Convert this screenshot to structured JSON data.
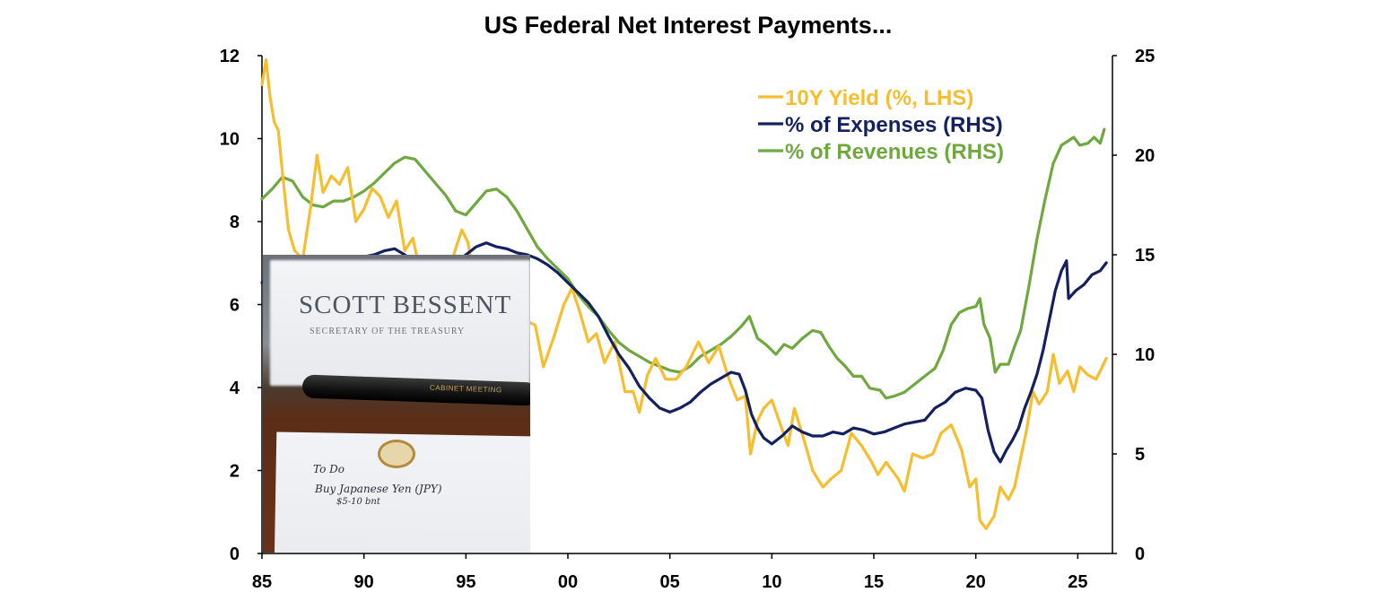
{
  "chart_data": {
    "type": "line",
    "title": "US Federal Net Interest Payments...",
    "x_tick_labels": [
      "85",
      "90",
      "95",
      "00",
      "05",
      "10",
      "15",
      "20",
      "25"
    ],
    "x_ticks": [
      1985,
      1990,
      1995,
      2000,
      2005,
      2010,
      2015,
      2020,
      2025
    ],
    "xlim": [
      1985,
      2026.7
    ],
    "y_left": {
      "ticks": [
        0,
        2,
        4,
        6,
        8,
        10,
        12
      ],
      "ylim": [
        0,
        12
      ]
    },
    "y_right": {
      "ticks": [
        0,
        5,
        10,
        15,
        20,
        25
      ],
      "ylim": [
        0,
        25
      ]
    },
    "legend_position": "top-right",
    "grid": false,
    "series": [
      {
        "name": "10Y Yield (%, LHS)",
        "axis": "left",
        "color": "#F6BE2E",
        "points": [
          [
            1985.0,
            11.3
          ],
          [
            1985.2,
            11.9
          ],
          [
            1985.4,
            11.0
          ],
          [
            1985.6,
            10.4
          ],
          [
            1985.8,
            10.2
          ],
          [
            1986.0,
            9.2
          ],
          [
            1986.3,
            7.8
          ],
          [
            1986.6,
            7.3
          ],
          [
            1987.0,
            7.1
          ],
          [
            1987.4,
            8.4
          ],
          [
            1987.7,
            9.6
          ],
          [
            1988.0,
            8.7
          ],
          [
            1988.4,
            9.1
          ],
          [
            1988.8,
            8.9
          ],
          [
            1989.2,
            9.3
          ],
          [
            1989.6,
            8.0
          ],
          [
            1990.0,
            8.3
          ],
          [
            1990.4,
            8.8
          ],
          [
            1990.8,
            8.6
          ],
          [
            1991.2,
            8.1
          ],
          [
            1991.6,
            8.5
          ],
          [
            1992.0,
            7.3
          ],
          [
            1992.4,
            7.6
          ],
          [
            1992.8,
            6.7
          ],
          [
            1993.2,
            6.0
          ],
          [
            1993.6,
            5.5
          ],
          [
            1994.0,
            5.9
          ],
          [
            1994.4,
            7.2
          ],
          [
            1994.8,
            7.8
          ],
          [
            1995.1,
            7.5
          ],
          [
            1995.5,
            6.3
          ],
          [
            1996.0,
            5.7
          ],
          [
            1996.5,
            6.7
          ],
          [
            1997.0,
            6.4
          ],
          [
            1997.5,
            6.1
          ],
          [
            1998.0,
            5.6
          ],
          [
            1998.4,
            5.5
          ],
          [
            1998.8,
            4.5
          ],
          [
            1999.3,
            5.2
          ],
          [
            1999.8,
            6.0
          ],
          [
            2000.2,
            6.4
          ],
          [
            2000.6,
            5.8
          ],
          [
            2001.0,
            5.1
          ],
          [
            2001.4,
            5.3
          ],
          [
            2001.8,
            4.6
          ],
          [
            2002.3,
            5.1
          ],
          [
            2002.8,
            3.9
          ],
          [
            2003.2,
            3.9
          ],
          [
            2003.5,
            3.4
          ],
          [
            2003.9,
            4.3
          ],
          [
            2004.3,
            4.7
          ],
          [
            2004.8,
            4.2
          ],
          [
            2005.3,
            4.2
          ],
          [
            2005.8,
            4.5
          ],
          [
            2006.4,
            5.1
          ],
          [
            2006.9,
            4.6
          ],
          [
            2007.4,
            5.0
          ],
          [
            2007.9,
            4.2
          ],
          [
            2008.3,
            3.7
          ],
          [
            2008.7,
            3.8
          ],
          [
            2008.95,
            2.4
          ],
          [
            2009.3,
            3.2
          ],
          [
            2009.6,
            3.5
          ],
          [
            2010.0,
            3.7
          ],
          [
            2010.5,
            3.0
          ],
          [
            2010.8,
            2.6
          ],
          [
            2011.1,
            3.5
          ],
          [
            2011.6,
            2.7
          ],
          [
            2012.0,
            2.0
          ],
          [
            2012.5,
            1.6
          ],
          [
            2012.9,
            1.8
          ],
          [
            2013.4,
            2.0
          ],
          [
            2013.9,
            2.9
          ],
          [
            2014.4,
            2.6
          ],
          [
            2014.9,
            2.2
          ],
          [
            2015.2,
            1.9
          ],
          [
            2015.6,
            2.2
          ],
          [
            2016.2,
            1.8
          ],
          [
            2016.5,
            1.5
          ],
          [
            2016.9,
            2.4
          ],
          [
            2017.4,
            2.3
          ],
          [
            2017.9,
            2.4
          ],
          [
            2018.3,
            2.9
          ],
          [
            2018.8,
            3.1
          ],
          [
            2019.3,
            2.5
          ],
          [
            2019.7,
            1.6
          ],
          [
            2020.0,
            1.8
          ],
          [
            2020.2,
            0.8
          ],
          [
            2020.5,
            0.6
          ],
          [
            2020.9,
            0.9
          ],
          [
            2021.2,
            1.6
          ],
          [
            2021.6,
            1.3
          ],
          [
            2021.9,
            1.6
          ],
          [
            2022.2,
            2.3
          ],
          [
            2022.5,
            3.0
          ],
          [
            2022.8,
            3.9
          ],
          [
            2023.1,
            3.6
          ],
          [
            2023.5,
            3.9
          ],
          [
            2023.8,
            4.8
          ],
          [
            2024.1,
            4.1
          ],
          [
            2024.5,
            4.4
          ],
          [
            2024.8,
            3.9
          ],
          [
            2025.1,
            4.5
          ],
          [
            2025.5,
            4.3
          ],
          [
            2025.9,
            4.2
          ],
          [
            2026.2,
            4.5
          ],
          [
            2026.4,
            4.7
          ]
        ]
      },
      {
        "name": "% of Expenses (RHS)",
        "axis": "right",
        "color": "#14215E",
        "points": [
          [
            1985.0,
            13.6
          ],
          [
            1985.5,
            13.9
          ],
          [
            1986.0,
            14.0
          ],
          [
            1986.5,
            13.8
          ],
          [
            1987.0,
            14.1
          ],
          [
            1987.5,
            14.0
          ],
          [
            1988.0,
            14.3
          ],
          [
            1988.5,
            14.5
          ],
          [
            1989.0,
            14.8
          ],
          [
            1989.5,
            14.7
          ],
          [
            1990.0,
            14.9
          ],
          [
            1990.5,
            15.0
          ],
          [
            1991.0,
            15.2
          ],
          [
            1991.5,
            15.3
          ],
          [
            1992.0,
            15.0
          ],
          [
            1992.5,
            14.6
          ],
          [
            1993.0,
            14.4
          ],
          [
            1993.5,
            14.2
          ],
          [
            1994.0,
            14.3
          ],
          [
            1994.5,
            14.6
          ],
          [
            1995.0,
            15.0
          ],
          [
            1995.5,
            15.4
          ],
          [
            1996.0,
            15.6
          ],
          [
            1996.5,
            15.4
          ],
          [
            1997.0,
            15.3
          ],
          [
            1997.5,
            15.1
          ],
          [
            1998.0,
            15.0
          ],
          [
            1998.5,
            14.8
          ],
          [
            1999.0,
            14.5
          ],
          [
            1999.5,
            14.1
          ],
          [
            2000.0,
            13.6
          ],
          [
            2000.5,
            13.1
          ],
          [
            2001.0,
            12.6
          ],
          [
            2001.5,
            11.9
          ],
          [
            2002.0,
            10.9
          ],
          [
            2002.5,
            10.0
          ],
          [
            2003.0,
            9.3
          ],
          [
            2003.5,
            8.4
          ],
          [
            2004.0,
            7.8
          ],
          [
            2004.5,
            7.3
          ],
          [
            2005.0,
            7.1
          ],
          [
            2005.5,
            7.3
          ],
          [
            2006.0,
            7.6
          ],
          [
            2006.5,
            8.1
          ],
          [
            2007.0,
            8.5
          ],
          [
            2007.5,
            8.8
          ],
          [
            2008.0,
            9.1
          ],
          [
            2008.4,
            9.0
          ],
          [
            2008.7,
            8.2
          ],
          [
            2009.0,
            7.0
          ],
          [
            2009.3,
            6.3
          ],
          [
            2009.6,
            5.8
          ],
          [
            2010.0,
            5.5
          ],
          [
            2010.5,
            5.9
          ],
          [
            2011.0,
            6.4
          ],
          [
            2011.5,
            6.1
          ],
          [
            2012.0,
            5.9
          ],
          [
            2012.5,
            5.9
          ],
          [
            2013.0,
            6.1
          ],
          [
            2013.5,
            6.0
          ],
          [
            2014.0,
            6.3
          ],
          [
            2014.5,
            6.2
          ],
          [
            2015.0,
            6.0
          ],
          [
            2015.5,
            6.1
          ],
          [
            2016.0,
            6.3
          ],
          [
            2016.5,
            6.5
          ],
          [
            2017.0,
            6.6
          ],
          [
            2017.5,
            6.7
          ],
          [
            2018.0,
            7.3
          ],
          [
            2018.5,
            7.6
          ],
          [
            2019.0,
            8.1
          ],
          [
            2019.5,
            8.3
          ],
          [
            2020.0,
            8.2
          ],
          [
            2020.3,
            7.8
          ],
          [
            2020.6,
            6.2
          ],
          [
            2020.9,
            5.1
          ],
          [
            2021.2,
            4.6
          ],
          [
            2021.5,
            5.2
          ],
          [
            2021.8,
            5.7
          ],
          [
            2022.1,
            6.3
          ],
          [
            2022.4,
            7.3
          ],
          [
            2022.7,
            8.1
          ],
          [
            2023.0,
            9.0
          ],
          [
            2023.3,
            10.2
          ],
          [
            2023.6,
            11.7
          ],
          [
            2023.9,
            13.2
          ],
          [
            2024.2,
            14.2
          ],
          [
            2024.45,
            14.7
          ],
          [
            2024.55,
            12.8
          ],
          [
            2024.9,
            13.2
          ],
          [
            2025.3,
            13.5
          ],
          [
            2025.7,
            14.0
          ],
          [
            2026.1,
            14.2
          ],
          [
            2026.4,
            14.6
          ]
        ]
      },
      {
        "name": "% of Revenues (RHS)",
        "axis": "right",
        "color": "#6EA83F",
        "points": [
          [
            1985.0,
            17.8
          ],
          [
            1985.5,
            18.3
          ],
          [
            1986.0,
            18.9
          ],
          [
            1986.5,
            18.7
          ],
          [
            1987.0,
            17.9
          ],
          [
            1987.5,
            17.5
          ],
          [
            1988.0,
            17.4
          ],
          [
            1988.5,
            17.7
          ],
          [
            1989.0,
            17.7
          ],
          [
            1989.5,
            17.9
          ],
          [
            1990.0,
            18.2
          ],
          [
            1990.5,
            18.6
          ],
          [
            1991.0,
            19.1
          ],
          [
            1991.5,
            19.6
          ],
          [
            1992.0,
            19.9
          ],
          [
            1992.5,
            19.8
          ],
          [
            1993.0,
            19.2
          ],
          [
            1993.5,
            18.6
          ],
          [
            1994.0,
            18.0
          ],
          [
            1994.5,
            17.2
          ],
          [
            1995.0,
            17.0
          ],
          [
            1995.5,
            17.6
          ],
          [
            1996.0,
            18.2
          ],
          [
            1996.5,
            18.3
          ],
          [
            1997.0,
            17.9
          ],
          [
            1997.5,
            17.2
          ],
          [
            1998.0,
            16.3
          ],
          [
            1998.5,
            15.4
          ],
          [
            1999.0,
            14.8
          ],
          [
            1999.5,
            14.3
          ],
          [
            2000.0,
            13.8
          ],
          [
            2000.5,
            13.0
          ],
          [
            2001.0,
            12.4
          ],
          [
            2001.5,
            11.9
          ],
          [
            2002.0,
            11.2
          ],
          [
            2002.5,
            10.6
          ],
          [
            2003.0,
            10.2
          ],
          [
            2003.5,
            9.9
          ],
          [
            2004.0,
            9.6
          ],
          [
            2004.5,
            9.4
          ],
          [
            2005.0,
            9.2
          ],
          [
            2005.5,
            9.1
          ],
          [
            2006.0,
            9.4
          ],
          [
            2006.5,
            9.9
          ],
          [
            2007.0,
            10.2
          ],
          [
            2007.5,
            10.5
          ],
          [
            2008.0,
            10.9
          ],
          [
            2008.5,
            11.4
          ],
          [
            2008.9,
            11.9
          ],
          [
            2009.3,
            10.8
          ],
          [
            2009.7,
            10.5
          ],
          [
            2010.2,
            10.0
          ],
          [
            2010.6,
            10.5
          ],
          [
            2011.0,
            10.3
          ],
          [
            2011.5,
            10.8
          ],
          [
            2012.0,
            11.2
          ],
          [
            2012.4,
            11.1
          ],
          [
            2012.8,
            10.4
          ],
          [
            2013.2,
            9.8
          ],
          [
            2013.6,
            9.4
          ],
          [
            2014.0,
            8.9
          ],
          [
            2014.4,
            8.9
          ],
          [
            2014.8,
            8.3
          ],
          [
            2015.3,
            8.2
          ],
          [
            2015.6,
            7.8
          ],
          [
            2016.0,
            7.9
          ],
          [
            2016.5,
            8.1
          ],
          [
            2017.0,
            8.5
          ],
          [
            2017.5,
            8.9
          ],
          [
            2018.0,
            9.3
          ],
          [
            2018.4,
            10.2
          ],
          [
            2018.8,
            11.5
          ],
          [
            2019.2,
            12.1
          ],
          [
            2019.6,
            12.3
          ],
          [
            2020.0,
            12.4
          ],
          [
            2020.2,
            12.8
          ],
          [
            2020.4,
            11.5
          ],
          [
            2020.7,
            10.8
          ],
          [
            2020.95,
            9.1
          ],
          [
            2021.2,
            9.5
          ],
          [
            2021.6,
            9.5
          ],
          [
            2021.9,
            10.4
          ],
          [
            2022.2,
            11.2
          ],
          [
            2022.6,
            13.4
          ],
          [
            2023.0,
            15.8
          ],
          [
            2023.4,
            17.8
          ],
          [
            2023.8,
            19.6
          ],
          [
            2024.2,
            20.5
          ],
          [
            2024.5,
            20.7
          ],
          [
            2024.8,
            20.9
          ],
          [
            2025.1,
            20.5
          ],
          [
            2025.5,
            20.6
          ],
          [
            2025.8,
            20.9
          ],
          [
            2026.1,
            20.6
          ],
          [
            2026.3,
            21.3
          ]
        ]
      }
    ]
  },
  "inset_photo": {
    "nameplate_name": "SCOTT BESSENT",
    "nameplate_subtitle": "SECRETARY OF THE TREASURY",
    "pen_label": "CABINET MEETING",
    "note_line1": "To Do",
    "note_line2": "Buy Japanese Yen (JPY)",
    "note_line3": "$5-10 bnt"
  }
}
